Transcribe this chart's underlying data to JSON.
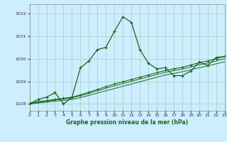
{
  "title": "Graphe pression niveau de la mer (hPa)",
  "background_color": "#cceeff",
  "grid_color": "#aaccbb",
  "line_color": "#1a6620",
  "border_color": "#888888",
  "x_min": 0,
  "x_max": 23,
  "y_min": 1027.7,
  "y_max": 1032.4,
  "yticks": [
    1028,
    1029,
    1030,
    1031,
    1032
  ],
  "xticks": [
    0,
    1,
    2,
    3,
    4,
    5,
    6,
    7,
    8,
    9,
    10,
    11,
    12,
    13,
    14,
    15,
    16,
    17,
    18,
    19,
    20,
    21,
    22,
    23
  ],
  "series1": {
    "x": [
      0,
      1,
      2,
      3,
      4,
      5,
      6,
      7,
      8,
      9,
      10,
      11,
      12,
      13,
      14,
      15,
      16,
      17,
      18,
      19,
      20,
      21,
      22,
      23
    ],
    "y": [
      1028.0,
      1028.2,
      1028.3,
      1028.5,
      1028.0,
      1028.3,
      1029.6,
      1029.9,
      1030.4,
      1030.5,
      1031.2,
      1031.85,
      1031.6,
      1030.4,
      1029.8,
      1029.55,
      1029.6,
      1029.25,
      1029.25,
      1029.45,
      1029.85,
      1029.7,
      1030.05,
      1030.1
    ]
  },
  "series2": {
    "x": [
      0,
      1,
      2,
      3,
      4,
      5,
      6,
      7,
      8,
      9,
      10,
      11,
      12,
      13,
      14,
      15,
      16,
      17,
      18,
      19,
      20,
      21,
      22,
      23
    ],
    "y": [
      1028.05,
      1028.1,
      1028.15,
      1028.2,
      1028.25,
      1028.3,
      1028.4,
      1028.52,
      1028.64,
      1028.76,
      1028.88,
      1028.98,
      1029.08,
      1029.18,
      1029.28,
      1029.38,
      1029.48,
      1029.55,
      1029.62,
      1029.72,
      1029.82,
      1029.9,
      1030.0,
      1030.1
    ]
  },
  "series3": {
    "x": [
      0,
      1,
      2,
      3,
      4,
      5,
      6,
      7,
      8,
      9,
      10,
      11,
      12,
      13,
      14,
      15,
      16,
      17,
      18,
      19,
      20,
      21,
      22,
      23
    ],
    "y": [
      1028.02,
      1028.07,
      1028.12,
      1028.17,
      1028.22,
      1028.27,
      1028.36,
      1028.47,
      1028.58,
      1028.69,
      1028.8,
      1028.9,
      1029.0,
      1029.1,
      1029.2,
      1029.3,
      1029.4,
      1029.47,
      1029.54,
      1029.63,
      1029.73,
      1029.81,
      1029.9,
      1030.0
    ]
  },
  "series4": {
    "x": [
      0,
      1,
      2,
      3,
      4,
      5,
      6,
      7,
      8,
      9,
      10,
      11,
      12,
      13,
      14,
      15,
      16,
      17,
      18,
      19,
      20,
      21,
      22,
      23
    ],
    "y": [
      1028.0,
      1028.04,
      1028.08,
      1028.12,
      1028.16,
      1028.2,
      1028.28,
      1028.38,
      1028.48,
      1028.58,
      1028.68,
      1028.78,
      1028.88,
      1028.98,
      1029.08,
      1029.18,
      1029.28,
      1029.35,
      1029.42,
      1029.51,
      1029.6,
      1029.68,
      1029.77,
      1029.86
    ]
  }
}
